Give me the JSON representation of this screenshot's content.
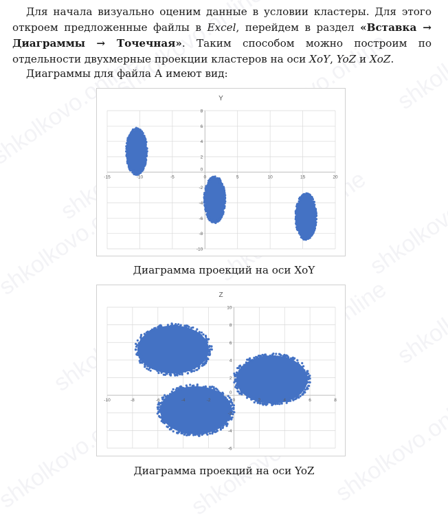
{
  "watermark_text": "shkolkovo.online",
  "paragraph1": {
    "t1": "Для начала визуально оценим данные в условии кластеры. Для этого откроем",
    "t2": "предложенные файлы в ",
    "excel": "Excel",
    "t3": ", перейдем в раздел ",
    "menu1": "«Вставка → Диаграммы",
    "menu2": "→ Точечная»",
    "t4": ". Таким способом можно построим по отдельности двухмерные",
    "t5": "проекции кластеров на оси ",
    "xoy": "XoY",
    "sep1": ", ",
    "yoz": "YoZ",
    "and": " и ",
    "xoz": "XoZ",
    "end": "."
  },
  "paragraph2": "Диаграммы для файла А имеют вид:",
  "colors": {
    "points": "#4472C4",
    "grid": "#d9d9d9",
    "axis": "#bfbfbf"
  },
  "captions": {
    "xoy": "Диаграмма проекций на оси XoY",
    "yoz": "Диаграмма проекций на оси YoZ"
  },
  "chart_data": [
    {
      "type": "scatter",
      "title": "Y",
      "xlim": [
        -15,
        20
      ],
      "ylim": [
        -10,
        8
      ],
      "x_ticks": [
        -15,
        -10,
        -5,
        0,
        5,
        10,
        15,
        20
      ],
      "y_ticks": [
        -10,
        -8,
        -6,
        -4,
        -2,
        0,
        2,
        4,
        6,
        8
      ],
      "grid": true,
      "clusters": [
        {
          "cx": -10.5,
          "cy": 2.7,
          "rx": 1.6,
          "ry": 3.0
        },
        {
          "cx": 1.5,
          "cy": -3.6,
          "rx": 1.6,
          "ry": 3.0
        },
        {
          "cx": 15.5,
          "cy": -5.8,
          "rx": 1.6,
          "ry": 3.0
        }
      ]
    },
    {
      "type": "scatter",
      "title": "Z",
      "xlim": [
        -10,
        8
      ],
      "ylim": [
        -6,
        10
      ],
      "x_ticks": [
        -10,
        -8,
        -6,
        -4,
        -2,
        0,
        2,
        4,
        6,
        8
      ],
      "y_ticks": [
        -6,
        -4,
        -2,
        0,
        2,
        4,
        6,
        8,
        10
      ],
      "grid": true,
      "clusters": [
        {
          "cx": -4.8,
          "cy": 5.2,
          "rx": 3.0,
          "ry": 2.9
        },
        {
          "cx": -3.0,
          "cy": -1.7,
          "rx": 3.0,
          "ry": 2.9
        },
        {
          "cx": 3.0,
          "cy": 1.8,
          "rx": 3.0,
          "ry": 2.9
        }
      ]
    }
  ]
}
